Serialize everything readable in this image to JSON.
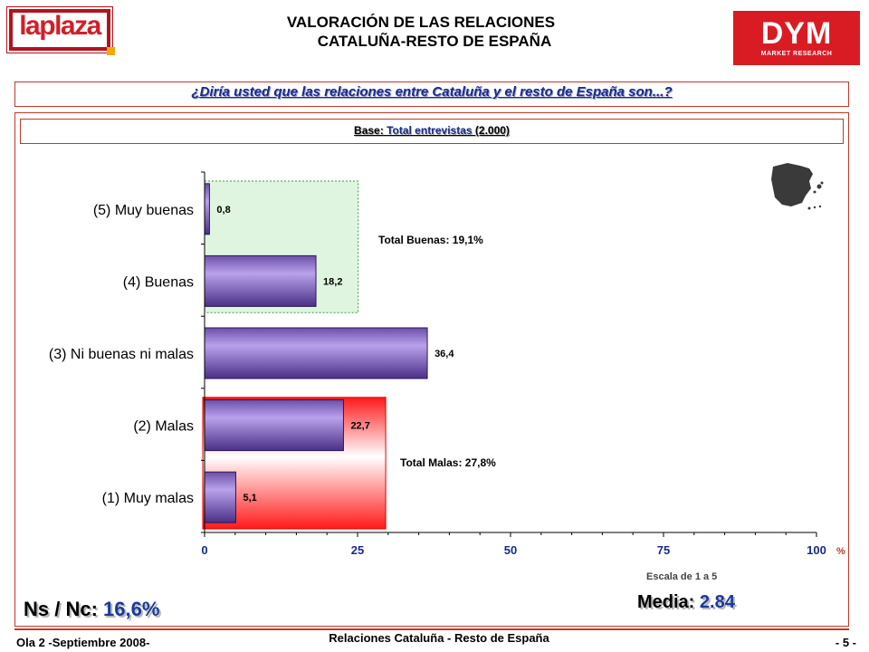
{
  "header": {
    "title_line1": "VALORACIÓN  DE LAS RELACIONES",
    "title_line2": "CATALUÑA-RESTO DE ESPAÑA",
    "logo_left": "laplaza",
    "logo_right_main": "DYM",
    "logo_right_sub": "MARKET RESEARCH"
  },
  "question": "¿Diría usted que las relaciones entre Cataluña y el resto de España son...?",
  "base": {
    "label": "Base:",
    "text": "Total entrevistas",
    "count": "(2.000)"
  },
  "annotations": {
    "total_buenas": "Total Buenas: 19,1%",
    "total_malas": "Total Malas: 27,8%",
    "scale": "Escala de 1 a 5",
    "media_label": "Media:",
    "media_value": "2.84",
    "nsnc_label": "Ns / Nc:",
    "nsnc_value": "16,6%"
  },
  "chart_data": {
    "type": "bar",
    "orientation": "horizontal",
    "categories": [
      "(5) Muy buenas",
      "(4) Buenas",
      "(3) Ni buenas ni malas",
      "(2) Malas",
      "(1) Muy malas"
    ],
    "values": [
      0.8,
      18.2,
      36.4,
      22.7,
      5.1
    ],
    "value_labels": [
      "0,8",
      "18,2",
      "36,4",
      "22,7",
      "5,1"
    ],
    "xlim": [
      0,
      100
    ],
    "xticks": [
      "0",
      "25",
      "50",
      "75",
      "100"
    ],
    "unit": "%",
    "bar_color": "#9b7fd0",
    "highlight_good": {
      "categories": [
        "(5) Muy buenas",
        "(4) Buenas"
      ],
      "total": 19.1,
      "color": "#dff5df"
    },
    "highlight_bad": {
      "categories": [
        "(2) Malas",
        "(1) Muy malas"
      ],
      "total": 27.8,
      "color": "#ff2a2a"
    }
  },
  "footer": {
    "left": "Ola 2 -Septiembre 2008-",
    "center": "Relaciones Cataluña - Resto de España",
    "right": "- 5 -"
  }
}
